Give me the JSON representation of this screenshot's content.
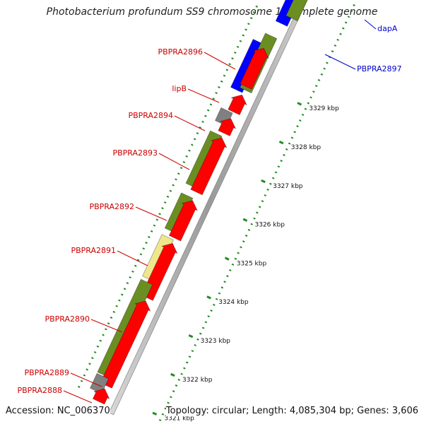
{
  "title": "Photobacterium profundum SS9 chromosome 1, complete genome",
  "footer": {
    "accession": "Accession: NC_006370",
    "topology": "Topology: circular; Length: 4,085,304 bp; Genes: 3,606"
  },
  "colors": {
    "forward_strand": "#ff0000",
    "blue_gene": "#0000ff",
    "green_gene": "#6b8e23",
    "yellow_gene": "#f0e68c",
    "gray_gene": "#808080",
    "backbone": "#999999",
    "dotted_track": "#228b22",
    "label_red": "#cc0000",
    "label_blue": "#0000cc"
  },
  "gene_labels": [
    {
      "name": "PBPRA2896",
      "color": "red"
    },
    {
      "name": "lipB",
      "color": "red"
    },
    {
      "name": "PBPRA2894",
      "color": "red"
    },
    {
      "name": "PBPRA2893",
      "color": "red"
    },
    {
      "name": "PBPRA2892",
      "color": "red"
    },
    {
      "name": "PBPRA2891",
      "color": "red"
    },
    {
      "name": "PBPRA2890",
      "color": "red"
    },
    {
      "name": "PBPRA2889",
      "color": "red"
    },
    {
      "name": "PBPRA2888",
      "color": "red"
    },
    {
      "name": "dapA",
      "color": "blue"
    },
    {
      "name": "PBPRA2897",
      "color": "blue"
    }
  ],
  "ticks": [
    "3329 kbp",
    "3328 kbp",
    "3327 kbp",
    "3326 kbp",
    "3325 kbp",
    "3324 kbp",
    "3323 kbp",
    "3322 kbp",
    "3321 kbp"
  ]
}
